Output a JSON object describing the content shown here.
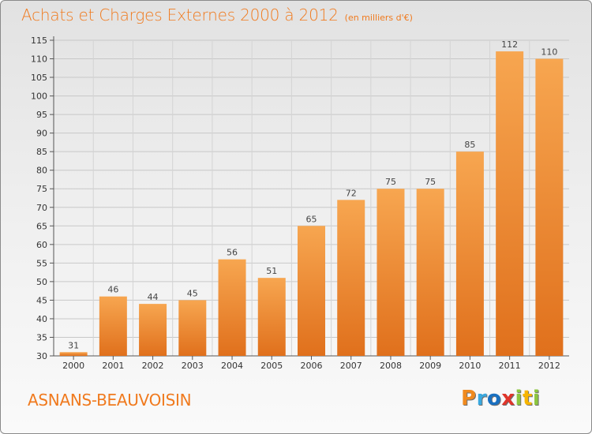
{
  "header": {
    "title": "Achats et Charges Externes 2000 à 2012",
    "subtitle": "(en milliers d'€)"
  },
  "commune": "ASNANS-BEAUVOISIN",
  "logo": {
    "letters": [
      "P",
      "r",
      "o",
      "x",
      "i",
      "t",
      "i"
    ],
    "colors": [
      "#f08a1e",
      "#39a9e0",
      "#1a70c0",
      "#e0352a",
      "#8cc63f",
      "#f7b500",
      "#8cc63f"
    ]
  },
  "chart_data": {
    "type": "bar",
    "title": "Achats et Charges Externes 2000 à 2012",
    "subtitle": "(en milliers d'€)",
    "categories": [
      "2000",
      "2001",
      "2002",
      "2003",
      "2004",
      "2005",
      "2006",
      "2007",
      "2008",
      "2009",
      "2010",
      "2011",
      "2012"
    ],
    "values": [
      31,
      46,
      44,
      45,
      56,
      51,
      65,
      72,
      75,
      75,
      85,
      112,
      110
    ],
    "data_labels": [
      "31",
      "46",
      "44",
      "45",
      "56",
      "51",
      "65",
      "72",
      "75",
      "75",
      "85",
      "112",
      "110"
    ],
    "ylim": [
      30,
      115
    ],
    "yticks": [
      30,
      35,
      40,
      45,
      50,
      55,
      60,
      65,
      70,
      75,
      80,
      85,
      90,
      95,
      100,
      105,
      110,
      115
    ],
    "grid": true,
    "bar_color_light": "#f7a650",
    "bar_color_dark": "#e0701c",
    "text_color": "#f07a1e",
    "xlabel": "",
    "ylabel": ""
  }
}
